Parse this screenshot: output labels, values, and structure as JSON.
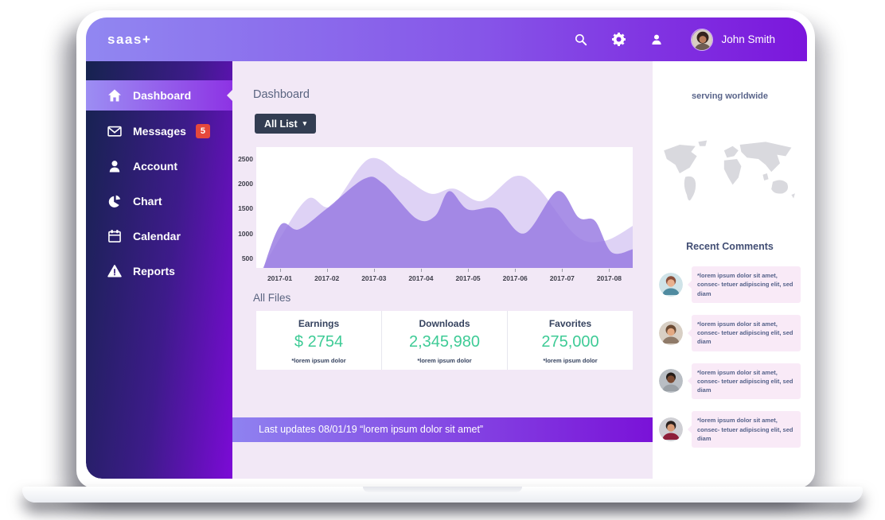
{
  "brand": {
    "logo": "saas+"
  },
  "topbar": {
    "user_name": "John Smith",
    "icons": [
      "search-icon",
      "gear-icon",
      "user-icon"
    ]
  },
  "sidebar": {
    "items": [
      {
        "label": "Dashboard",
        "icon": "home-icon",
        "active": true
      },
      {
        "label": "Messages",
        "icon": "envelope-icon",
        "badge": "5"
      },
      {
        "label": "Account",
        "icon": "person-icon"
      },
      {
        "label": "Chart",
        "icon": "pie-chart-icon"
      },
      {
        "label": "Calendar",
        "icon": "calendar-icon"
      },
      {
        "label": "Reports",
        "icon": "warning-icon"
      }
    ]
  },
  "main": {
    "page_title": "Dashboard",
    "filter_button": {
      "label": "All List",
      "caret": "▾"
    },
    "all_files": {
      "title": "All Files",
      "stats": [
        {
          "label": "Earnings",
          "value": "$ 2754",
          "note": "*lorem ipsum dolor"
        },
        {
          "label": "Downloads",
          "value": "2,345,980",
          "note": "*lorem ipsum dolor"
        },
        {
          "label": "Favorites",
          "value": "275,000",
          "note": "*lorem ipsum dolor"
        }
      ]
    },
    "update_bar": {
      "text": "Last updates 08/01/19 “lorem ipsum dolor sit amet”"
    }
  },
  "right_panel": {
    "map_title": "serving worldwide",
    "comments_title": "Recent Comments",
    "comments": [
      {
        "text": "*lorem ipsum dolor sit amet, consec- tetuer adipiscing elit, sed diam"
      },
      {
        "text": "*lorem ipsum dolor sit amet, consec- tetuer adipiscing elit, sed diam"
      },
      {
        "text": "*lorem ipsum dolor sit amet, consec- tetuer adipiscing elit, sed diam"
      },
      {
        "text": "*lorem ipsum dolor sit amet, consec- tetuer adipiscing elit, sed diam"
      }
    ]
  },
  "chart_data": {
    "type": "area",
    "title": "",
    "xlabel": "",
    "ylabel": "",
    "x_tick_labels": [
      "2017-01",
      "2017-02",
      "2017-03",
      "2017-04",
      "2017-05",
      "2017-06",
      "2017-07",
      "2017-08"
    ],
    "y_tick_labels": [
      "500",
      "1000",
      "1500",
      "2000",
      "2500"
    ],
    "y_ticks": [
      500,
      1000,
      1500,
      2000,
      2500
    ],
    "xlim_months": [
      0.5,
      8.5
    ],
    "ylim": [
      0,
      2500
    ],
    "grid": false,
    "legend": "none",
    "series": [
      {
        "name": "series-light",
        "color": "#dcd0f4",
        "opacity": 0.95,
        "points": [
          [
            0.5,
            60
          ],
          [
            1.0,
            900
          ],
          [
            1.6,
            1700
          ],
          [
            2.1,
            1550
          ],
          [
            2.9,
            2500
          ],
          [
            3.6,
            2150
          ],
          [
            4.2,
            1800
          ],
          [
            4.7,
            1900
          ],
          [
            5.3,
            1650
          ],
          [
            6.0,
            2150
          ],
          [
            6.5,
            1900
          ],
          [
            7.3,
            950
          ],
          [
            7.9,
            850
          ],
          [
            8.5,
            1150
          ]
        ]
      },
      {
        "name": "series-dark",
        "color": "#9678e2",
        "opacity": 0.82,
        "points": [
          [
            0.55,
            0
          ],
          [
            1.0,
            1150
          ],
          [
            1.4,
            1080
          ],
          [
            2.0,
            1500
          ],
          [
            2.8,
            2100
          ],
          [
            3.2,
            2000
          ],
          [
            3.9,
            1300
          ],
          [
            4.3,
            1350
          ],
          [
            4.6,
            1850
          ],
          [
            5.0,
            1480
          ],
          [
            5.6,
            1500
          ],
          [
            6.2,
            1000
          ],
          [
            6.9,
            1850
          ],
          [
            7.35,
            1320
          ],
          [
            7.7,
            1250
          ],
          [
            8.05,
            620
          ],
          [
            8.5,
            680
          ]
        ]
      }
    ]
  },
  "colors": {
    "topbar_gradient_start": "#9187f1",
    "topbar_gradient_end": "#7b16dc",
    "sidebar_gradient_start": "#16234f",
    "sidebar_gradient_end": "#7c0ad7",
    "main_background": "#f2e8f6",
    "stat_value_green": "#3ecb96",
    "badge_red": "#e5483c",
    "bubble_pink": "#f9eaf7",
    "map_gray": "#d9d9de"
  }
}
